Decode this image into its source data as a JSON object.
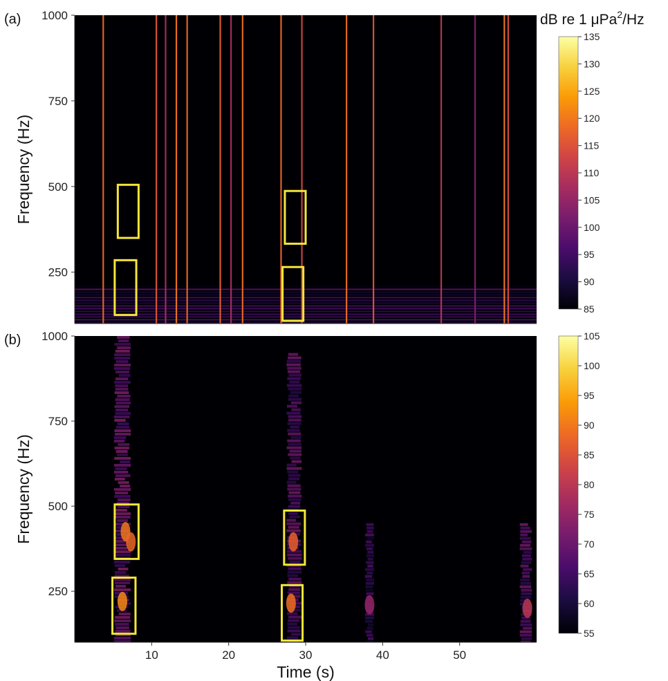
{
  "figure": {
    "colorbar_unit": "dB re 1 μPa²/Hz",
    "colorbar_unit_parts": [
      "dB re 1 μPa",
      "2",
      "/Hz"
    ],
    "xlabel": "Time (s)"
  },
  "colormap": {
    "name": "inferno",
    "stops": [
      "#000004",
      "#1b0c41",
      "#4a0c6b",
      "#781c6d",
      "#a52c60",
      "#cf4446",
      "#ed6925",
      "#fb9b06",
      "#f7d13d",
      "#fcffa4"
    ]
  },
  "annotation_color": "#f5e63a",
  "chart_data": [
    {
      "type": "heatmap",
      "panel_label": "(a)",
      "ylabel": "Frequency (Hz)",
      "xlim": [
        0,
        60
      ],
      "ylim": [
        100,
        1000
      ],
      "x_ticks": [],
      "y_ticks": [
        250,
        500,
        750,
        1000
      ],
      "colorbar": {
        "min": 85,
        "max": 135,
        "ticks": [
          85,
          90,
          95,
          100,
          105,
          110,
          115,
          120,
          125,
          130,
          135
        ]
      },
      "broadband_transients": [
        {
          "t": 3.7,
          "level": 118
        },
        {
          "t": 10.6,
          "level": 116
        },
        {
          "t": 11.8,
          "level": 108
        },
        {
          "t": 13.2,
          "level": 120
        },
        {
          "t": 14.6,
          "level": 118
        },
        {
          "t": 18.9,
          "level": 117
        },
        {
          "t": 20.3,
          "level": 108
        },
        {
          "t": 21.8,
          "level": 119
        },
        {
          "t": 26.8,
          "level": 118
        },
        {
          "t": 29.5,
          "level": 113
        },
        {
          "t": 35.3,
          "level": 119
        },
        {
          "t": 38.8,
          "level": 116
        },
        {
          "t": 47.6,
          "level": 110
        },
        {
          "t": 52.0,
          "level": 103
        },
        {
          "t": 55.8,
          "level": 120
        },
        {
          "t": 56.3,
          "level": 114
        }
      ],
      "low_frequency_band": {
        "f_min": 100,
        "f_max": 210,
        "level": 98
      },
      "boxes": [
        {
          "t0": 5.6,
          "t1": 8.3,
          "f0": 350,
          "f1": 505
        },
        {
          "t0": 5.2,
          "t1": 8.0,
          "f0": 125,
          "f1": 285
        },
        {
          "t0": 27.3,
          "t1": 30.0,
          "f0": 333,
          "f1": 487
        },
        {
          "t0": 27.0,
          "t1": 29.7,
          "f0": 108,
          "f1": 265
        }
      ]
    },
    {
      "type": "heatmap",
      "panel_label": "(b)",
      "ylabel": "Frequency (Hz)",
      "xlim": [
        0,
        60
      ],
      "ylim": [
        100,
        1000
      ],
      "x_ticks": [
        10,
        20,
        30,
        40,
        50
      ],
      "y_ticks": [
        250,
        500,
        750,
        1000
      ],
      "colorbar": {
        "min": 55,
        "max": 105,
        "ticks": [
          55,
          60,
          65,
          70,
          75,
          80,
          85,
          90,
          95,
          100,
          105
        ]
      },
      "call_columns": [
        {
          "t": 6.2,
          "width": 2.2,
          "f_top": 1000,
          "level": 72
        },
        {
          "t": 28.5,
          "width": 2.0,
          "f_top": 950,
          "level": 70
        },
        {
          "t": 38.3,
          "width": 1.2,
          "f_top": 450,
          "level": 66
        },
        {
          "t": 58.6,
          "width": 1.6,
          "f_top": 450,
          "level": 70
        }
      ],
      "hot_spots": [
        {
          "t": 6.6,
          "f": 425,
          "level": 90
        },
        {
          "t": 6.2,
          "f": 220,
          "level": 92
        },
        {
          "t": 7.3,
          "f": 395,
          "level": 88
        },
        {
          "t": 28.4,
          "f": 395,
          "level": 87
        },
        {
          "t": 28.1,
          "f": 215,
          "level": 89
        },
        {
          "t": 38.3,
          "f": 210,
          "level": 75
        },
        {
          "t": 58.8,
          "f": 200,
          "level": 80
        }
      ],
      "boxes": [
        {
          "t0": 5.2,
          "t1": 8.3,
          "f0": 345,
          "f1": 505
        },
        {
          "t0": 4.9,
          "t1": 7.9,
          "f0": 125,
          "f1": 290
        },
        {
          "t0": 27.2,
          "t1": 29.9,
          "f0": 328,
          "f1": 487
        },
        {
          "t0": 26.9,
          "t1": 29.6,
          "f0": 105,
          "f1": 268
        }
      ]
    }
  ]
}
